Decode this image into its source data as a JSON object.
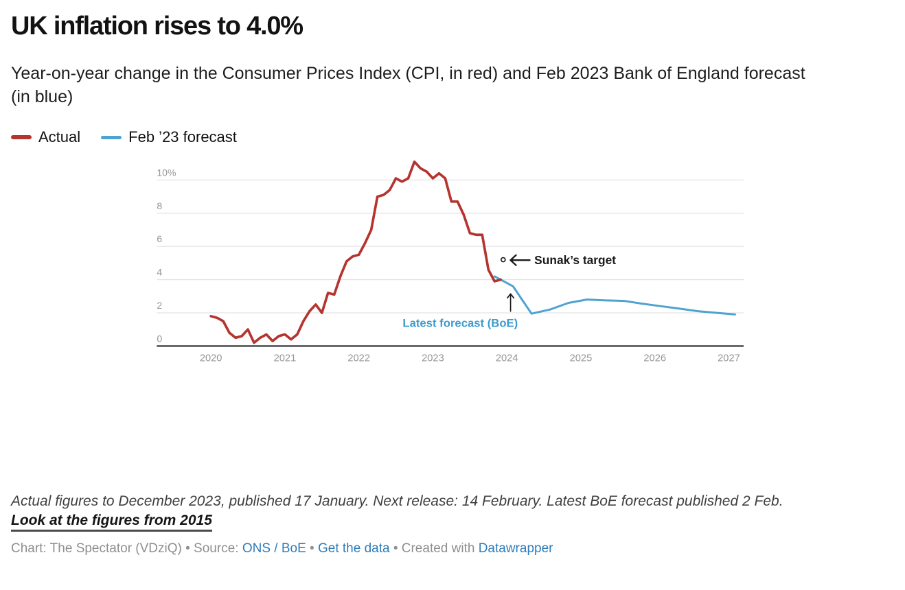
{
  "header": {
    "title": "UK inflation rises to 4.0%",
    "subtitle_lines": [
      "Year-on-year change in the Consumer Prices Index (CPI, in red) and Feb 2023 Bank of England forecast",
      "(in blue)"
    ]
  },
  "chart_data": {
    "type": "line",
    "title": "UK inflation rises to 4.0%",
    "xlabel": "",
    "ylabel": "",
    "grid": "horizontal",
    "legend_position": "top-left",
    "x_range": [
      2019.7,
      2027.3
    ],
    "y_range": [
      0,
      11.3
    ],
    "yticks": [
      {
        "v": 0,
        "label": "0"
      },
      {
        "v": 2,
        "label": "2"
      },
      {
        "v": 4,
        "label": "4"
      },
      {
        "v": 6,
        "label": "6"
      },
      {
        "v": 8,
        "label": "8"
      },
      {
        "v": 10,
        "label": "10%"
      }
    ],
    "xticks": [
      {
        "v": 2020,
        "label": "2020"
      },
      {
        "v": 2021,
        "label": "2021"
      },
      {
        "v": 2022,
        "label": "2022"
      },
      {
        "v": 2023,
        "label": "2023"
      },
      {
        "v": 2024,
        "label": "2024"
      },
      {
        "v": 2025,
        "label": "2025"
      },
      {
        "v": 2026,
        "label": "2026"
      },
      {
        "v": 2027,
        "label": "2027"
      }
    ],
    "series": [
      {
        "name": "Feb ’23 forecast",
        "color": "#4fa3d1",
        "stroke_width": 4.5,
        "start_year": 2023.8333,
        "interval_months": 3,
        "values": [
          4.2,
          3.6,
          1.95,
          2.2,
          2.6,
          2.8,
          2.75,
          2.72,
          2.55,
          2.4,
          2.25,
          2.1,
          2.0,
          1.9
        ]
      },
      {
        "name": "Actual",
        "color": "#b5342f",
        "stroke_width": 5.5,
        "start_year": 2020,
        "interval_months": 1,
        "values": [
          1.8,
          1.7,
          1.5,
          0.8,
          0.5,
          0.6,
          1.0,
          0.2,
          0.5,
          0.7,
          0.3,
          0.6,
          0.7,
          0.4,
          0.7,
          1.5,
          2.1,
          2.5,
          2.0,
          3.2,
          3.1,
          4.2,
          5.1,
          5.4,
          5.5,
          6.2,
          7.0,
          9.0,
          9.1,
          9.4,
          10.1,
          9.9,
          10.1,
          11.1,
          10.7,
          10.5,
          10.1,
          10.4,
          10.1,
          8.7,
          8.7,
          7.9,
          6.8,
          6.7,
          6.7,
          4.6,
          3.9,
          4.0
        ]
      }
    ],
    "annotations": [
      {
        "text": "Sunak’s target",
        "x": 2023.95,
        "y": 5.2,
        "style": "circle-marker-with-left-arrow",
        "color": "#1a1a1a"
      },
      {
        "text": "Latest forecast (BoE)",
        "x": 2024.05,
        "y": 3.1,
        "style": "up-arrow-with-label-below",
        "color": "#3d9bce"
      }
    ],
    "colors": {
      "axis_line": "#1a1a1a",
      "grid_line": "#e4e4e4",
      "tick_label": "#969696"
    }
  },
  "footer": {
    "note": "Actual figures to December 2023, published 17 January. Next release: 14 February. Latest BoE forecast published 2 Feb.",
    "link_label": "Look at the figures from 2015",
    "byline_parts": [
      {
        "text": "Chart: The Spectator (VDziQ) • Source: ",
        "link": false
      },
      {
        "text": "ONS / BoE",
        "link": true
      },
      {
        "text": " • ",
        "link": false
      },
      {
        "text": "Get the data",
        "link": true
      },
      {
        "text": " • Created with ",
        "link": false
      },
      {
        "text": "Datawrapper",
        "link": true
      }
    ]
  }
}
